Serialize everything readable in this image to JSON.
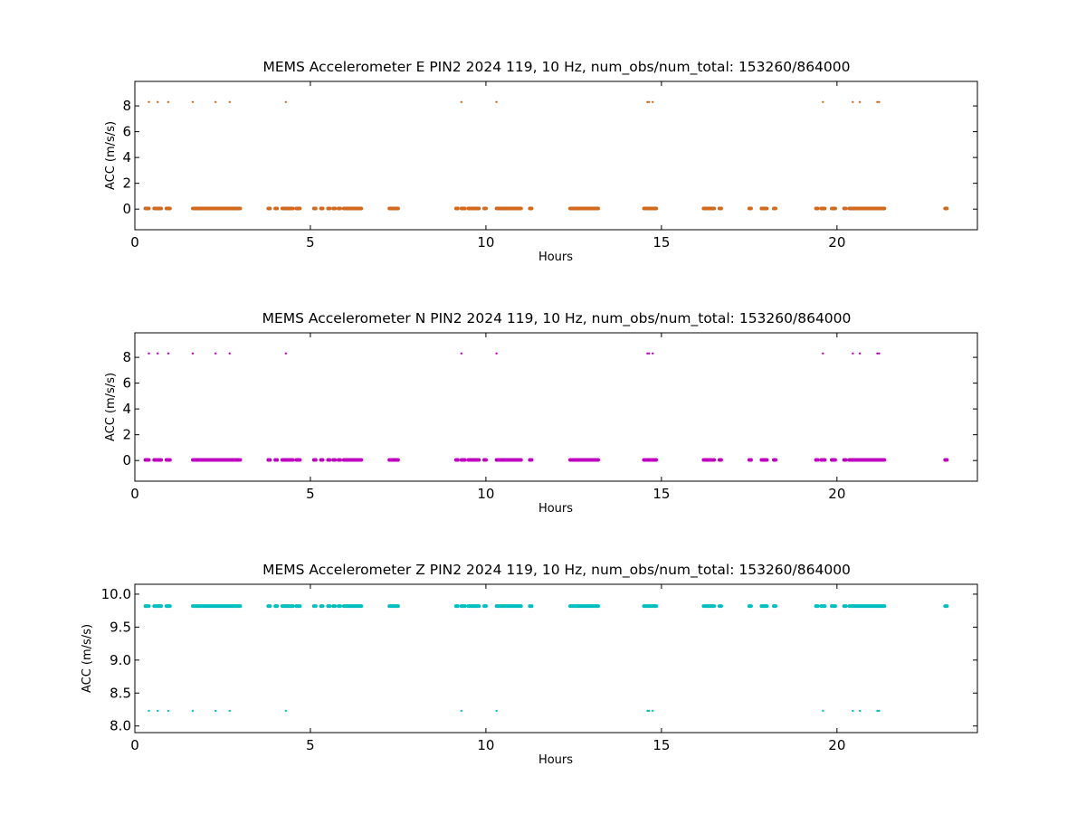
{
  "figure": {
    "background": "#ffffff"
  },
  "chart_data": [
    {
      "type": "scatter",
      "title": "MEMS Accelerometer E PIN2 2024 119, 10 Hz, num_obs/num_total: 153260/864000",
      "xlabel": "Hours",
      "ylabel": "ACC (m/s/s)",
      "xlim": [
        0,
        24
      ],
      "ylim": [
        -1.6,
        9.9
      ],
      "xticks": [
        0,
        5,
        10,
        15,
        20
      ],
      "xtick_labels": [
        "0",
        "5",
        "10",
        "15",
        "20"
      ],
      "yticks": [
        0,
        2,
        4,
        6,
        8
      ],
      "ytick_labels": [
        "0",
        "2",
        "4",
        "6",
        "8"
      ],
      "grid": false,
      "color": "#d2691e",
      "series": [
        {
          "segments": [
            [
              0.3,
              0.4
            ],
            [
              0.55,
              0.75
            ],
            [
              0.9,
              1.0
            ],
            [
              1.65,
              3.0
            ],
            [
              3.8,
              3.82
            ],
            [
              4.0,
              4.02
            ],
            [
              4.2,
              4.5
            ],
            [
              4.6,
              4.7
            ],
            [
              5.1,
              5.12
            ],
            [
              5.3,
              5.32
            ],
            [
              5.5,
              5.52
            ],
            [
              5.65,
              5.67
            ],
            [
              5.8,
              5.85
            ],
            [
              5.95,
              6.45
            ],
            [
              7.25,
              7.5
            ],
            [
              9.15,
              9.17
            ],
            [
              9.3,
              9.4
            ],
            [
              9.5,
              9.8
            ],
            [
              9.95,
              9.97
            ],
            [
              10.3,
              11.0
            ],
            [
              11.25,
              11.27
            ],
            [
              12.4,
              13.2
            ],
            [
              14.5,
              14.52
            ],
            [
              14.6,
              14.85
            ],
            [
              16.2,
              16.5
            ],
            [
              16.65,
              16.67
            ],
            [
              17.5,
              17.52
            ],
            [
              17.85,
              18.0
            ],
            [
              18.2,
              18.22
            ],
            [
              19.4,
              19.42
            ],
            [
              19.55,
              19.65
            ],
            [
              19.85,
              19.95
            ],
            [
              20.2,
              20.22
            ],
            [
              20.35,
              21.35
            ],
            [
              23.08,
              23.12
            ]
          ],
          "level": 0.05
        },
        {
          "points_x": [
            0.4,
            0.65,
            0.95,
            1.65,
            2.3,
            2.7,
            4.3,
            9.3,
            10.3,
            14.6,
            14.65,
            14.75,
            19.6,
            20.45,
            20.65,
            21.15,
            21.2
          ],
          "level": 8.3
        }
      ]
    },
    {
      "type": "scatter",
      "title": "MEMS Accelerometer N PIN2 2024 119, 10 Hz, num_obs/num_total: 153260/864000",
      "xlabel": "Hours",
      "ylabel": "ACC (m/s/s)",
      "xlim": [
        0,
        24
      ],
      "ylim": [
        -1.6,
        9.9
      ],
      "xticks": [
        0,
        5,
        10,
        15,
        20
      ],
      "xtick_labels": [
        "0",
        "5",
        "10",
        "15",
        "20"
      ],
      "yticks": [
        0,
        2,
        4,
        6,
        8
      ],
      "ytick_labels": [
        "0",
        "2",
        "4",
        "6",
        "8"
      ],
      "grid": false,
      "color": "#c000c0",
      "series": [
        {
          "segments": [
            [
              0.3,
              0.4
            ],
            [
              0.55,
              0.75
            ],
            [
              0.9,
              1.0
            ],
            [
              1.65,
              3.0
            ],
            [
              3.8,
              3.82
            ],
            [
              4.0,
              4.02
            ],
            [
              4.2,
              4.5
            ],
            [
              4.6,
              4.7
            ],
            [
              5.1,
              5.12
            ],
            [
              5.3,
              5.32
            ],
            [
              5.5,
              5.52
            ],
            [
              5.65,
              5.67
            ],
            [
              5.8,
              5.85
            ],
            [
              5.95,
              6.45
            ],
            [
              7.25,
              7.5
            ],
            [
              9.15,
              9.17
            ],
            [
              9.3,
              9.4
            ],
            [
              9.5,
              9.8
            ],
            [
              9.95,
              9.97
            ],
            [
              10.3,
              11.0
            ],
            [
              11.25,
              11.27
            ],
            [
              12.4,
              13.2
            ],
            [
              14.5,
              14.52
            ],
            [
              14.6,
              14.85
            ],
            [
              16.2,
              16.5
            ],
            [
              16.65,
              16.67
            ],
            [
              17.5,
              17.52
            ],
            [
              17.85,
              18.0
            ],
            [
              18.2,
              18.22
            ],
            [
              19.4,
              19.42
            ],
            [
              19.55,
              19.65
            ],
            [
              19.85,
              19.95
            ],
            [
              20.2,
              20.22
            ],
            [
              20.35,
              21.35
            ],
            [
              23.08,
              23.12
            ]
          ],
          "level": 0.05
        },
        {
          "points_x": [
            0.4,
            0.65,
            0.95,
            1.65,
            2.3,
            2.7,
            4.3,
            9.3,
            10.3,
            14.6,
            14.65,
            14.75,
            19.6,
            20.45,
            20.65,
            21.15,
            21.2
          ],
          "level": 8.3
        }
      ]
    },
    {
      "type": "scatter",
      "title": "MEMS Accelerometer Z PIN2 2024 119, 10 Hz, num_obs/num_total: 153260/864000",
      "xlabel": "Hours",
      "ylabel": "ACC (m/s/s)",
      "xlim": [
        0,
        24
      ],
      "ylim": [
        7.9,
        10.15
      ],
      "xticks": [
        0,
        5,
        10,
        15,
        20
      ],
      "xtick_labels": [
        "0",
        "5",
        "10",
        "15",
        "20"
      ],
      "yticks": [
        8.0,
        8.5,
        9.0,
        9.5,
        10.0
      ],
      "ytick_labels": [
        "8.0",
        "8.5",
        "9.0",
        "9.5",
        "10.0"
      ],
      "grid": false,
      "color": "#00bfbf",
      "series": [
        {
          "segments": [
            [
              0.3,
              0.4
            ],
            [
              0.55,
              0.75
            ],
            [
              0.9,
              1.0
            ],
            [
              1.65,
              3.0
            ],
            [
              3.8,
              3.82
            ],
            [
              4.0,
              4.02
            ],
            [
              4.2,
              4.5
            ],
            [
              4.6,
              4.7
            ],
            [
              5.1,
              5.12
            ],
            [
              5.3,
              5.32
            ],
            [
              5.5,
              5.52
            ],
            [
              5.65,
              5.67
            ],
            [
              5.8,
              5.85
            ],
            [
              5.95,
              6.45
            ],
            [
              7.25,
              7.5
            ],
            [
              9.15,
              9.17
            ],
            [
              9.3,
              9.4
            ],
            [
              9.5,
              9.8
            ],
            [
              9.95,
              9.97
            ],
            [
              10.3,
              11.0
            ],
            [
              11.25,
              11.27
            ],
            [
              12.4,
              13.2
            ],
            [
              14.5,
              14.52
            ],
            [
              14.6,
              14.85
            ],
            [
              16.2,
              16.5
            ],
            [
              16.65,
              16.67
            ],
            [
              17.5,
              17.52
            ],
            [
              17.85,
              18.0
            ],
            [
              18.2,
              18.22
            ],
            [
              19.4,
              19.42
            ],
            [
              19.55,
              19.65
            ],
            [
              19.85,
              19.95
            ],
            [
              20.2,
              20.22
            ],
            [
              20.35,
              21.35
            ],
            [
              23.08,
              23.12
            ]
          ],
          "level": 9.82
        },
        {
          "points_x": [
            0.4,
            0.65,
            0.95,
            1.65,
            2.3,
            2.7,
            4.3,
            9.3,
            10.3,
            14.6,
            14.65,
            14.75,
            19.6,
            20.45,
            20.65,
            21.15,
            21.2
          ],
          "level": 8.23
        }
      ]
    }
  ]
}
